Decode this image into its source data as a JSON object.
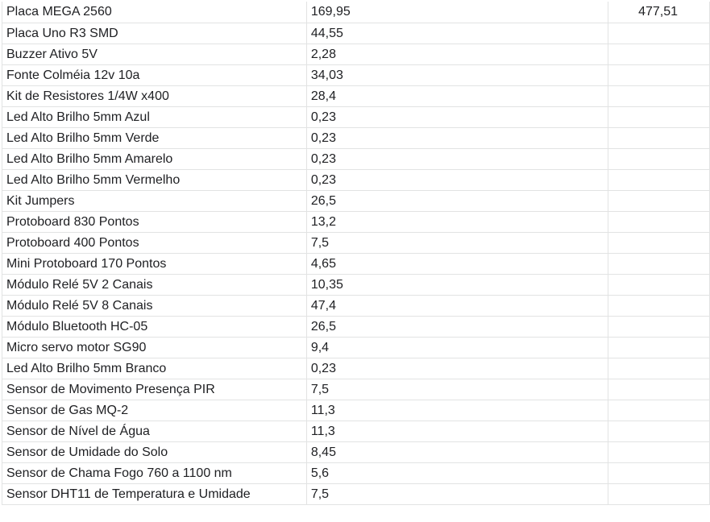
{
  "sheet": {
    "rows": [
      {
        "item": "Placa MEGA 2560",
        "price": "169,95",
        "total": "477,51"
      },
      {
        "item": "Placa Uno R3 SMD",
        "price": "44,55",
        "total": ""
      },
      {
        "item": "Buzzer Ativo 5V",
        "price": "2,28",
        "total": ""
      },
      {
        "item": "Fonte Colméia 12v 10a",
        "price": "34,03",
        "total": ""
      },
      {
        "item": "Kit de Resistores 1/4W x400",
        "price": "28,4",
        "total": ""
      },
      {
        "item": "Led Alto Brilho 5mm Azul",
        "price": "0,23",
        "total": ""
      },
      {
        "item": "Led Alto Brilho 5mm Verde",
        "price": "0,23",
        "total": ""
      },
      {
        "item": "Led Alto Brilho 5mm Amarelo",
        "price": "0,23",
        "total": ""
      },
      {
        "item": "Led Alto Brilho 5mm Vermelho",
        "price": "0,23",
        "total": ""
      },
      {
        "item": "Kit Jumpers",
        "price": "26,5",
        "total": ""
      },
      {
        "item": "Protoboard 830 Pontos",
        "price": "13,2",
        "total": ""
      },
      {
        "item": "Protoboard 400 Pontos",
        "price": "7,5",
        "total": ""
      },
      {
        "item": "Mini Protoboard 170 Pontos",
        "price": "4,65",
        "total": ""
      },
      {
        "item": "Módulo Relé 5V 2 Canais",
        "price": "10,35",
        "total": ""
      },
      {
        "item": "Módulo Relé 5V 8 Canais",
        "price": "47,4",
        "total": ""
      },
      {
        "item": "Módulo Bluetooth HC-05",
        "price": "26,5",
        "total": ""
      },
      {
        "item": "Micro servo motor SG90",
        "price": "9,4",
        "total": ""
      },
      {
        "item": "Led Alto Brilho 5mm Branco",
        "price": "0,23",
        "total": ""
      },
      {
        "item": "Sensor de Movimento Presença PIR",
        "price": "7,5",
        "total": ""
      },
      {
        "item": "Sensor de Gas MQ-2",
        "price": "11,3",
        "total": ""
      },
      {
        "item": "Sensor de Nível de Água",
        "price": "11,3",
        "total": ""
      },
      {
        "item": "Sensor de Umidade do Solo",
        "price": "8,45",
        "total": ""
      },
      {
        "item": "Sensor de Chama Fogo 760 a 1100 nm",
        "price": "5,6",
        "total": ""
      },
      {
        "item": "Sensor DHT11 de Temperatura e Umidade",
        "price": "7,5",
        "total": ""
      }
    ]
  },
  "colors": {
    "gridline": "#e2e3e3",
    "text": "#202124",
    "background": "#ffffff"
  }
}
